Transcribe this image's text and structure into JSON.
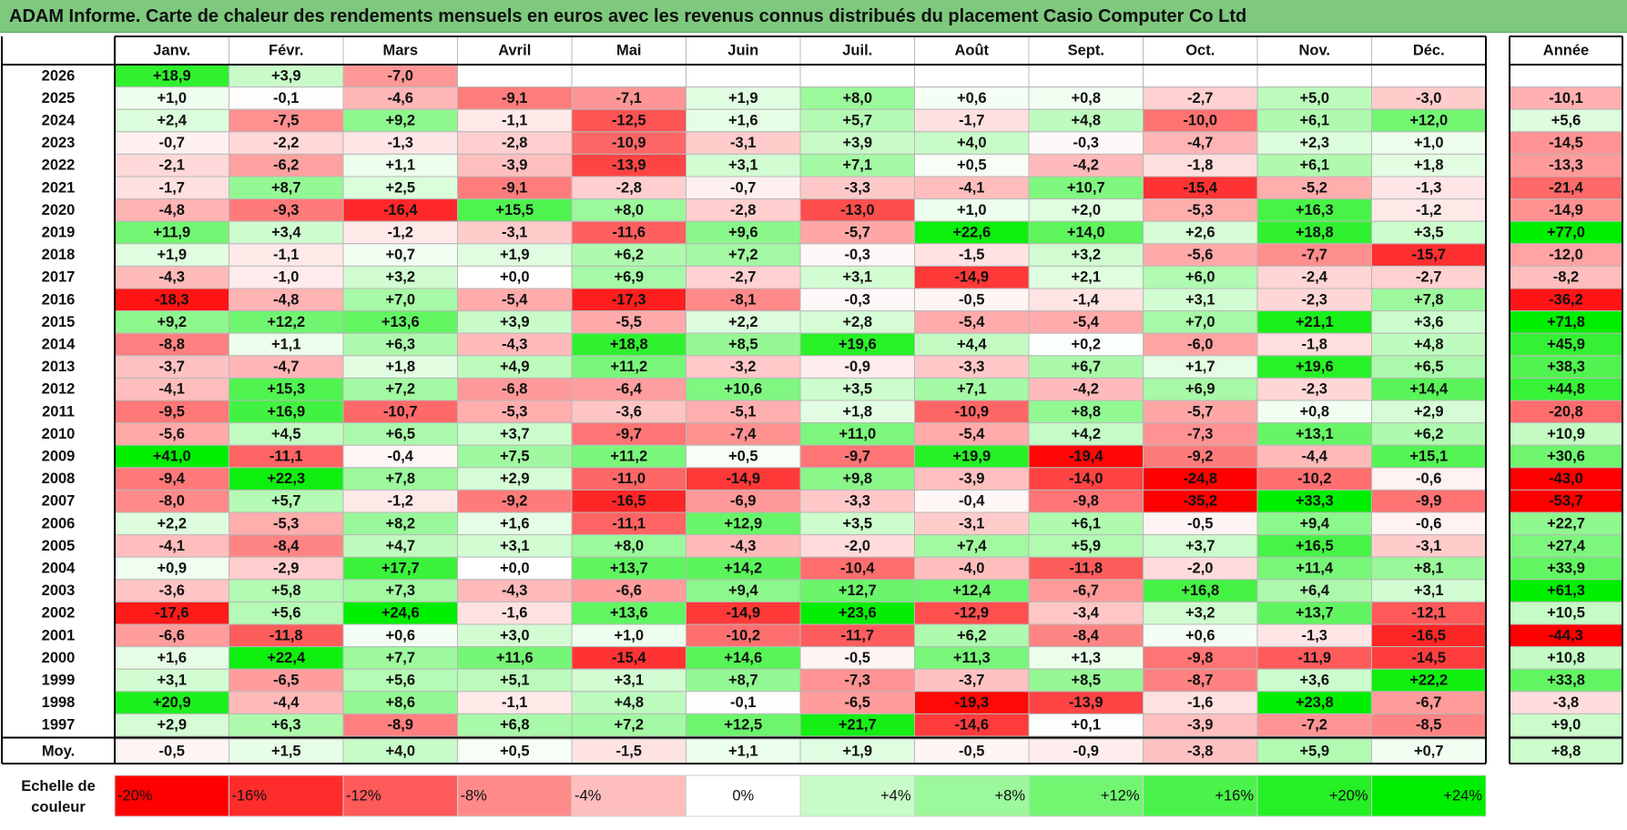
{
  "title": "ADAM Informe. Carte de chaleur des rendements mensuels en euros avec les revenus connus distribués du placement Casio Computer Co Ltd",
  "chart_data": {
    "type": "heatmap",
    "title": "ADAM Informe. Carte de chaleur des rendements mensuels en euros avec les revenus connus distribués du placement Casio Computer Co Ltd",
    "columns": [
      "Janv.",
      "Févr.",
      "Mars",
      "Avril",
      "Mai",
      "Juin",
      "Juil.",
      "Août",
      "Sept.",
      "Oct.",
      "Nov.",
      "Déc."
    ],
    "year_column_label": "Année",
    "rows": [
      {
        "year": "2026",
        "months": [
          "+18,9",
          "+3,9",
          "-7,0",
          "",
          "",
          "",
          "",
          "",
          "",
          "",
          "",
          ""
        ],
        "annual": ""
      },
      {
        "year": "2025",
        "months": [
          "+1,0",
          "-0,1",
          "-4,6",
          "-9,1",
          "-7,1",
          "+1,9",
          "+8,0",
          "+0,6",
          "+0,8",
          "-2,7",
          "+5,0",
          "-3,0"
        ],
        "annual": "-10,1"
      },
      {
        "year": "2024",
        "months": [
          "+2,4",
          "-7,5",
          "+9,2",
          "-1,1",
          "-12,5",
          "+1,6",
          "+5,7",
          "-1,7",
          "+4,8",
          "-10,0",
          "+6,1",
          "+12,0"
        ],
        "annual": "+5,6"
      },
      {
        "year": "2023",
        "months": [
          "-0,7",
          "-2,2",
          "-1,3",
          "-2,8",
          "-10,9",
          "-3,1",
          "+3,9",
          "+4,0",
          "-0,3",
          "-4,7",
          "+2,3",
          "+1,0"
        ],
        "annual": "-14,5"
      },
      {
        "year": "2022",
        "months": [
          "-2,1",
          "-6,2",
          "+1,1",
          "-3,9",
          "-13,9",
          "+3,1",
          "+7,1",
          "+0,5",
          "-4,2",
          "-1,8",
          "+6,1",
          "+1,8"
        ],
        "annual": "-13,3"
      },
      {
        "year": "2021",
        "months": [
          "-1,7",
          "+8,7",
          "+2,5",
          "-9,1",
          "-2,8",
          "-0,7",
          "-3,3",
          "-4,1",
          "+10,7",
          "-15,4",
          "-5,2",
          "-1,3"
        ],
        "annual": "-21,4"
      },
      {
        "year": "2020",
        "months": [
          "-4,8",
          "-9,3",
          "-16,4",
          "+15,5",
          "+8,0",
          "-2,8",
          "-13,0",
          "+1,0",
          "+2,0",
          "-5,3",
          "+16,3",
          "-1,2"
        ],
        "annual": "-14,9"
      },
      {
        "year": "2019",
        "months": [
          "+11,9",
          "+3,4",
          "-1,2",
          "-3,1",
          "-11,6",
          "+9,6",
          "-5,7",
          "+22,6",
          "+14,0",
          "+2,6",
          "+18,8",
          "+3,5"
        ],
        "annual": "+77,0"
      },
      {
        "year": "2018",
        "months": [
          "+1,9",
          "-1,1",
          "+0,7",
          "+1,9",
          "+6,2",
          "+7,2",
          "-0,3",
          "-1,5",
          "+3,2",
          "-5,6",
          "-7,7",
          "-15,7"
        ],
        "annual": "-12,0"
      },
      {
        "year": "2017",
        "months": [
          "-4,3",
          "-1,0",
          "+3,2",
          "+0,0",
          "+6,9",
          "-2,7",
          "+3,1",
          "-14,9",
          "+2,1",
          "+6,0",
          "-2,4",
          "-2,7"
        ],
        "annual": "-8,2"
      },
      {
        "year": "2016",
        "months": [
          "-18,3",
          "-4,8",
          "+7,0",
          "-5,4",
          "-17,3",
          "-8,1",
          "-0,3",
          "-0,5",
          "-1,4",
          "+3,1",
          "-2,3",
          "+7,8"
        ],
        "annual": "-36,2"
      },
      {
        "year": "2015",
        "months": [
          "+9,2",
          "+12,2",
          "+13,6",
          "+3,9",
          "-5,5",
          "+2,2",
          "+2,8",
          "-5,4",
          "-5,4",
          "+7,0",
          "+21,1",
          "+3,6"
        ],
        "annual": "+71,8"
      },
      {
        "year": "2014",
        "months": [
          "-8,8",
          "+1,1",
          "+6,3",
          "-4,3",
          "+18,8",
          "+8,5",
          "+19,6",
          "+4,4",
          "+0,2",
          "-6,0",
          "-1,8",
          "+4,8"
        ],
        "annual": "+45,9"
      },
      {
        "year": "2013",
        "months": [
          "-3,7",
          "-4,7",
          "+1,8",
          "+4,9",
          "+11,2",
          "-3,2",
          "-0,9",
          "-3,3",
          "+6,7",
          "+1,7",
          "+19,6",
          "+6,5"
        ],
        "annual": "+38,3"
      },
      {
        "year": "2012",
        "months": [
          "-4,1",
          "+15,3",
          "+7,2",
          "-6,8",
          "-6,4",
          "+10,6",
          "+3,5",
          "+7,1",
          "-4,2",
          "+6,9",
          "-2,3",
          "+14,4"
        ],
        "annual": "+44,8"
      },
      {
        "year": "2011",
        "months": [
          "-9,5",
          "+16,9",
          "-10,7",
          "-5,3",
          "-3,6",
          "-5,1",
          "+1,8",
          "-10,9",
          "+8,8",
          "-5,7",
          "+0,8",
          "+2,9"
        ],
        "annual": "-20,8"
      },
      {
        "year": "2010",
        "months": [
          "-5,6",
          "+4,5",
          "+6,5",
          "+3,7",
          "-9,7",
          "-7,4",
          "+11,0",
          "-5,4",
          "+4,2",
          "-7,3",
          "+13,1",
          "+6,2"
        ],
        "annual": "+10,9"
      },
      {
        "year": "2009",
        "months": [
          "+41,0",
          "-11,1",
          "-0,4",
          "+7,5",
          "+11,2",
          "+0,5",
          "-9,7",
          "+19,9",
          "-19,4",
          "-9,2",
          "-4,4",
          "+15,1"
        ],
        "annual": "+30,6"
      },
      {
        "year": "2008",
        "months": [
          "-9,4",
          "+22,3",
          "+7,8",
          "+2,9",
          "-11,0",
          "-14,9",
          "+9,8",
          "-3,9",
          "-14,0",
          "-24,8",
          "-10,2",
          "-0,6"
        ],
        "annual": "-43,0"
      },
      {
        "year": "2007",
        "months": [
          "-8,0",
          "+5,7",
          "-1,2",
          "-9,2",
          "-16,5",
          "-6,9",
          "-3,3",
          "-0,4",
          "-9,8",
          "-35,2",
          "+33,3",
          "-9,9"
        ],
        "annual": "-53,7"
      },
      {
        "year": "2006",
        "months": [
          "+2,2",
          "-5,3",
          "+8,2",
          "+1,6",
          "-11,1",
          "+12,9",
          "+3,5",
          "-3,1",
          "+6,1",
          "-0,5",
          "+9,4",
          "-0,6"
        ],
        "annual": "+22,7"
      },
      {
        "year": "2005",
        "months": [
          "-4,1",
          "-8,4",
          "+4,7",
          "+3,1",
          "+8,0",
          "-4,3",
          "-2,0",
          "+7,4",
          "+5,9",
          "+3,7",
          "+16,5",
          "-3,1"
        ],
        "annual": "+27,4"
      },
      {
        "year": "2004",
        "months": [
          "+0,9",
          "-2,9",
          "+17,7",
          "+0,0",
          "+13,7",
          "+14,2",
          "-10,4",
          "-4,0",
          "-11,8",
          "-2,0",
          "+11,4",
          "+8,1"
        ],
        "annual": "+33,9"
      },
      {
        "year": "2003",
        "months": [
          "-3,6",
          "+5,8",
          "+7,3",
          "-4,3",
          "-6,6",
          "+9,4",
          "+12,7",
          "+12,4",
          "-6,7",
          "+16,8",
          "+6,4",
          "+3,1"
        ],
        "annual": "+61,3"
      },
      {
        "year": "2002",
        "months": [
          "-17,6",
          "+5,6",
          "+24,6",
          "-1,6",
          "+13,6",
          "-14,9",
          "+23,6",
          "-12,9",
          "-3,4",
          "+3,2",
          "+13,7",
          "-12,1"
        ],
        "annual": "+10,5"
      },
      {
        "year": "2001",
        "months": [
          "-6,6",
          "-11,8",
          "+0,6",
          "+3,0",
          "+1,0",
          "-10,2",
          "-11,7",
          "+6,2",
          "-8,4",
          "+0,6",
          "-1,3",
          "-16,5"
        ],
        "annual": "-44,3"
      },
      {
        "year": "2000",
        "months": [
          "+1,6",
          "+22,4",
          "+7,7",
          "+11,6",
          "-15,4",
          "+14,6",
          "-0,5",
          "+11,3",
          "+1,3",
          "-9,8",
          "-11,9",
          "-14,5"
        ],
        "annual": "+10,8"
      },
      {
        "year": "1999",
        "months": [
          "+3,1",
          "-6,5",
          "+5,6",
          "+5,1",
          "+3,1",
          "+8,7",
          "-7,3",
          "-3,7",
          "+8,5",
          "-8,7",
          "+3,6",
          "+22,2"
        ],
        "annual": "+33,8"
      },
      {
        "year": "1998",
        "months": [
          "+20,9",
          "-4,4",
          "+8,6",
          "-1,1",
          "+4,8",
          "-0,1",
          "-6,5",
          "-19,3",
          "-13,9",
          "-1,6",
          "+23,8",
          "-6,7"
        ],
        "annual": "-3,8"
      },
      {
        "year": "1997",
        "months": [
          "+2,9",
          "+6,3",
          "-8,9",
          "+6,8",
          "+7,2",
          "+12,5",
          "+21,7",
          "-14,6",
          "+0,1",
          "-3,9",
          "-7,2",
          "-8,5"
        ],
        "annual": "+9,0"
      }
    ],
    "average": {
      "label": "Moy.",
      "months": [
        "-0,5",
        "+1,5",
        "+4,0",
        "+0,5",
        "-1,5",
        "+1,1",
        "+1,9",
        "-0,5",
        "-0,9",
        "-3,8",
        "+5,9",
        "+0,7"
      ],
      "annual": "+8,8"
    },
    "color_scale": {
      "label_line1": "Echelle de",
      "label_line2": "couleur",
      "stops": [
        "-20%",
        "-16%",
        "-12%",
        "-8%",
        "-4%",
        "0%",
        "+4%",
        "+8%",
        "+12%",
        "+16%",
        "+20%",
        "+24%"
      ],
      "stop_values": [
        -20,
        -16,
        -12,
        -8,
        -4,
        0,
        4,
        8,
        12,
        16,
        20,
        24
      ],
      "negative_color": "#ff0000",
      "neutral_color": "#ffffff",
      "positive_color": "#00ee00"
    }
  }
}
